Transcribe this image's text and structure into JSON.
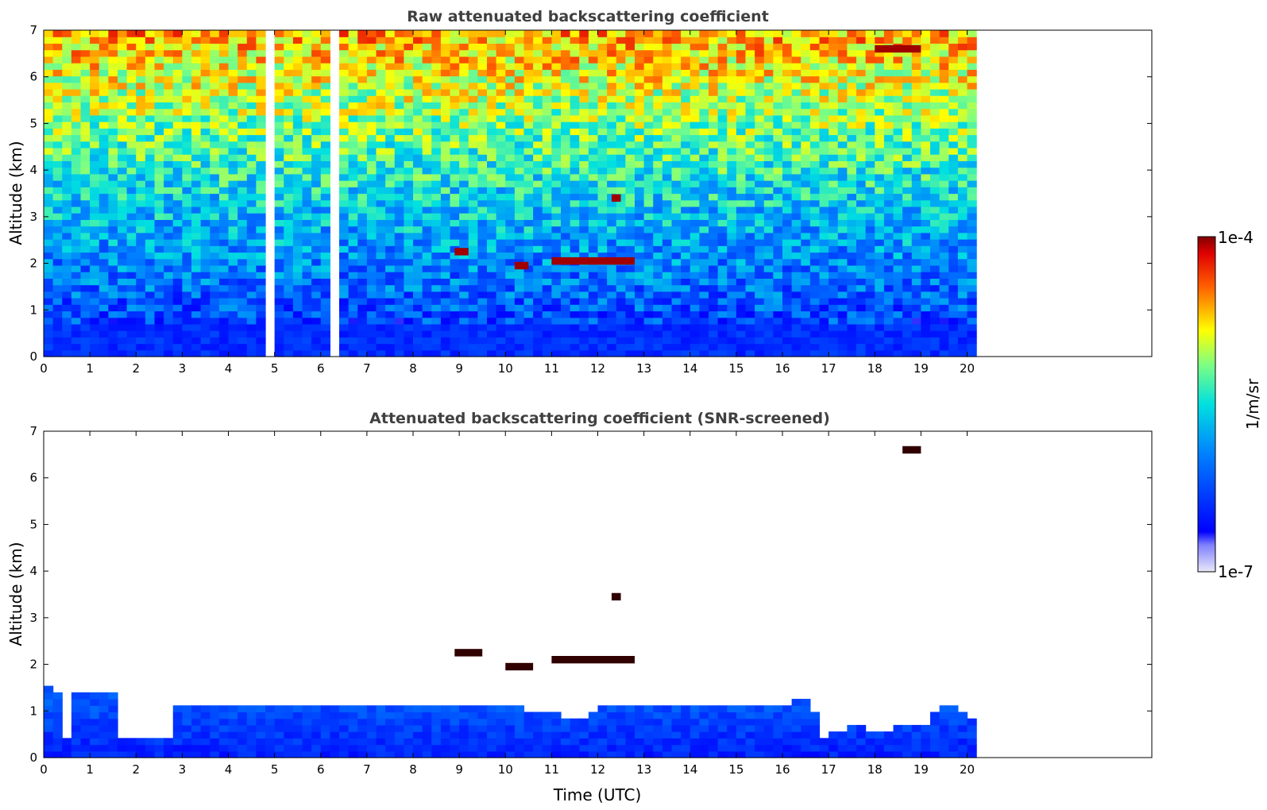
{
  "figure": {
    "colorbar": {
      "max_label": "1e-4",
      "min_label": "1e-7",
      "unit_label": "1/m/sr",
      "colormap": "jet"
    }
  },
  "chart_data": [
    {
      "type": "heatmap",
      "title": "Raw attenuated backscattering coefficient",
      "xlabel": "",
      "ylabel": "Altitude (km)",
      "xlim": [
        0,
        24
      ],
      "ylim": [
        0,
        7
      ],
      "x_ticks": [
        "0",
        "1",
        "2",
        "3",
        "4",
        "5",
        "6",
        "7",
        "8",
        "9",
        "10",
        "11",
        "12",
        "13",
        "14",
        "15",
        "16",
        "17",
        "18",
        "19",
        "20"
      ],
      "y_ticks": [
        "0",
        "1",
        "2",
        "3",
        "4",
        "5",
        "6",
        "7"
      ],
      "data_end_time": 20.1,
      "data_gaps_utc": [
        4.85,
        4.9,
        6.3,
        6.38
      ],
      "cloud_layers": [
        {
          "time_start": 8.9,
          "time_end": 9.2,
          "altitude_km": 2.25
        },
        {
          "time_start": 10.2,
          "time_end": 10.5,
          "altitude_km": 1.95
        },
        {
          "time_start": 11.0,
          "time_end": 12.8,
          "altitude_km": 2.05
        },
        {
          "time_start": 12.3,
          "time_end": 12.5,
          "altitude_km": 3.4
        },
        {
          "time_start": 18.0,
          "time_end": 19.0,
          "altitude_km": 6.6
        }
      ]
    },
    {
      "type": "heatmap",
      "title": "Attenuated backscattering coefficient (SNR-screened)",
      "xlabel": "Time (UTC)",
      "ylabel": "Altitude (km)",
      "xlim": [
        0,
        24
      ],
      "ylim": [
        0,
        7
      ],
      "x_ticks": [
        "0",
        "1",
        "2",
        "3",
        "4",
        "5",
        "6",
        "7",
        "8",
        "9",
        "10",
        "11",
        "12",
        "13",
        "14",
        "15",
        "16",
        "17",
        "18",
        "19",
        "20"
      ],
      "y_ticks": [
        "0",
        "1",
        "2",
        "3",
        "4",
        "5",
        "6",
        "7"
      ],
      "data_end_time": 20.1,
      "boundary_layer_top_km": {
        "time_utc": [
          0,
          0.3,
          0.4,
          0.5,
          1.0,
          1.5,
          1.6,
          2.0,
          2.6,
          2.7,
          4.0,
          6.0,
          8.0,
          10.0,
          11.0,
          11.5,
          12.0,
          13.0,
          14.0,
          16.0,
          16.5,
          16.8,
          17.0,
          17.5,
          18.0,
          18.5,
          19.0,
          19.5,
          20.1
        ],
        "altitude_km": [
          1.5,
          1.3,
          0.4,
          1.3,
          1.4,
          1.4,
          0.35,
          0.3,
          0.4,
          1.1,
          1.1,
          1.05,
          1.0,
          1.0,
          0.9,
          0.7,
          1.0,
          1.1,
          1.0,
          1.1,
          1.2,
          0.4,
          0.5,
          0.6,
          0.5,
          0.6,
          0.7,
          1.1,
          0.7
        ]
      },
      "cloud_layers": [
        {
          "time_start": 8.9,
          "time_end": 9.5,
          "altitude_km": 2.25
        },
        {
          "time_start": 10.0,
          "time_end": 10.6,
          "altitude_km": 1.95
        },
        {
          "time_start": 11.0,
          "time_end": 12.8,
          "altitude_km": 2.1
        },
        {
          "time_start": 12.3,
          "time_end": 12.5,
          "altitude_km": 3.45
        },
        {
          "time_start": 18.6,
          "time_end": 19.0,
          "altitude_km": 6.6
        }
      ]
    }
  ]
}
